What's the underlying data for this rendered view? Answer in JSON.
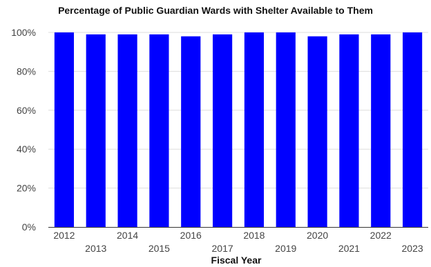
{
  "chart_data": {
    "type": "bar",
    "title": "Percentage of Public Guardian Wards with Shelter Available to Them",
    "xlabel": "Fiscal Year",
    "ylabel": "",
    "categories": [
      "2012",
      "2013",
      "2014",
      "2015",
      "2016",
      "2017",
      "2018",
      "2019",
      "2020",
      "2021",
      "2022",
      "2023"
    ],
    "values": [
      100,
      99,
      99,
      99,
      98,
      99,
      100,
      100,
      98,
      99,
      99,
      100
    ],
    "ylim": [
      0,
      100
    ],
    "y_ticks": [
      "0%",
      "20%",
      "40%",
      "60%",
      "80%",
      "100%"
    ],
    "y_tick_values": [
      0,
      20,
      40,
      60,
      80,
      100
    ],
    "bar_color": "#0000ff",
    "gridlines": true,
    "legend": "none"
  }
}
